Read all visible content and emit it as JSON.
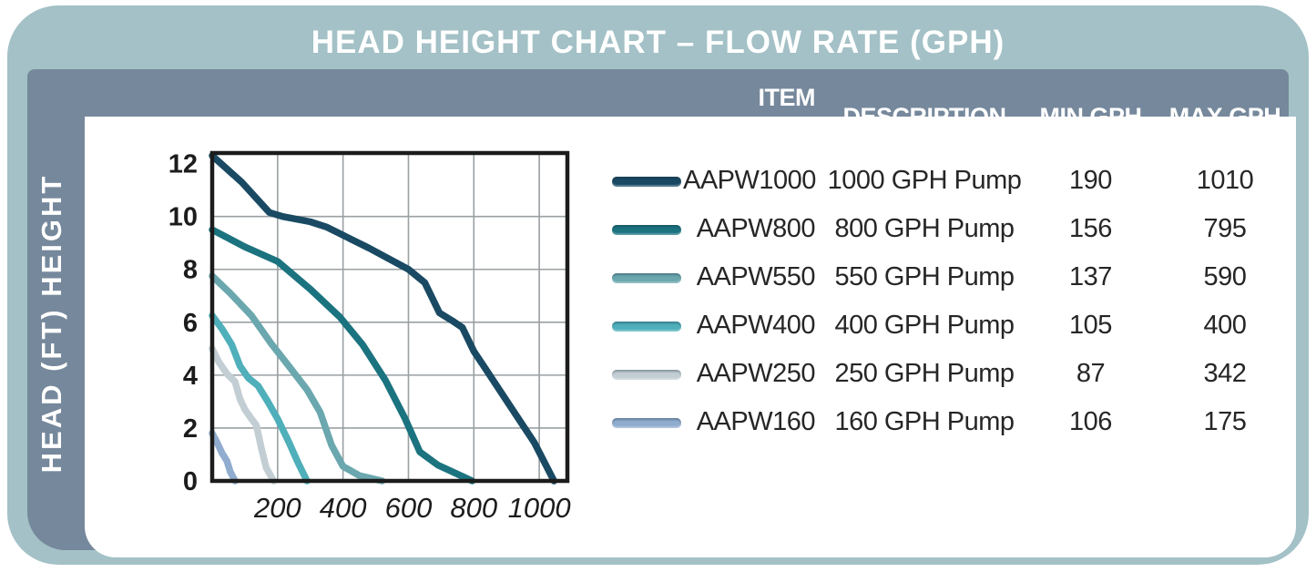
{
  "title": "HEAD HEIGHT CHART – FLOW RATE (GPH)",
  "y_axis_label": "HEAD (FT) HEIGHT",
  "colors": {
    "frame": "#a3c1c6",
    "panel": "#76889c",
    "card": "#ffffff",
    "grid": "#9aa0a3",
    "axis_border": "#1c1c1c",
    "table_text": "#262626",
    "header_text": "#ffffff"
  },
  "table": {
    "headers": [
      "ITEM CODE",
      "DESCRIPTION",
      "MIN GPH",
      "MAX GPH"
    ],
    "rows": [
      {
        "code": "AAPW1000",
        "description": "1000 GPH Pump",
        "min_gph": "190",
        "max_gph": "1010",
        "color": "#1a4a63"
      },
      {
        "code": "AAPW800",
        "description": "800 GPH Pump",
        "min_gph": "156",
        "max_gph": "795",
        "color": "#1b737f"
      },
      {
        "code": "AAPW550",
        "description": "550 GPH Pump",
        "min_gph": "137",
        "max_gph": "590",
        "color": "#6ba7ae"
      },
      {
        "code": "AAPW400",
        "description": "400 GPH Pump",
        "min_gph": "105",
        "max_gph": "400",
        "color": "#4fafba"
      },
      {
        "code": "AAPW250",
        "description": "250 GPH Pump",
        "min_gph": "87",
        "max_gph": "342",
        "color": "#c2ced3"
      },
      {
        "code": "AAPW160",
        "description": "160 GPH Pump",
        "min_gph": "106",
        "max_gph": "175",
        "color": "#90accf"
      }
    ]
  },
  "chart_data": {
    "type": "line",
    "title": "HEAD HEIGHT CHART – FLOW RATE (GPH)",
    "xlabel": "FLOW RATE (GPH)",
    "ylabel": "HEAD (FT) HEIGHT",
    "xlim": [
      0,
      1086
    ],
    "ylim": [
      0,
      12.4
    ],
    "x_ticks": [
      200,
      400,
      600,
      800,
      1000
    ],
    "y_ticks": [
      0,
      2,
      4,
      6,
      8,
      10,
      12
    ],
    "grid": true,
    "legend_position": "right-table",
    "series": [
      {
        "name": "AAPW1000",
        "color": "#1a4a63",
        "points": [
          [
            0,
            12.3
          ],
          [
            90,
            11.3
          ],
          [
            175,
            10.15
          ],
          [
            215,
            10.0
          ],
          [
            300,
            9.8
          ],
          [
            350,
            9.6
          ],
          [
            480,
            8.8
          ],
          [
            600,
            8.0
          ],
          [
            650,
            7.5
          ],
          [
            695,
            6.35
          ],
          [
            735,
            6.05
          ],
          [
            765,
            5.8
          ],
          [
            800,
            4.9
          ],
          [
            835,
            4.25
          ],
          [
            910,
            2.85
          ],
          [
            985,
            1.45
          ],
          [
            1045,
            0
          ]
        ]
      },
      {
        "name": "AAPW800",
        "color": "#1b737f",
        "points": [
          [
            0,
            9.5
          ],
          [
            100,
            8.85
          ],
          [
            200,
            8.3
          ],
          [
            300,
            7.25
          ],
          [
            390,
            6.2
          ],
          [
            460,
            5.15
          ],
          [
            530,
            3.8
          ],
          [
            590,
            2.35
          ],
          [
            635,
            1.1
          ],
          [
            690,
            0.6
          ],
          [
            795,
            0
          ]
        ]
      },
      {
        "name": "AAPW550",
        "color": "#6ba7ae",
        "points": [
          [
            0,
            7.75
          ],
          [
            55,
            7.1
          ],
          [
            120,
            6.25
          ],
          [
            180,
            5.2
          ],
          [
            240,
            4.25
          ],
          [
            290,
            3.45
          ],
          [
            330,
            2.6
          ],
          [
            365,
            1.35
          ],
          [
            400,
            0.55
          ],
          [
            450,
            0.2
          ],
          [
            520,
            0
          ]
        ]
      },
      {
        "name": "AAPW400",
        "color": "#4fafba",
        "points": [
          [
            0,
            6.25
          ],
          [
            30,
            5.75
          ],
          [
            60,
            5.15
          ],
          [
            85,
            4.35
          ],
          [
            110,
            3.9
          ],
          [
            140,
            3.6
          ],
          [
            170,
            3.0
          ],
          [
            200,
            2.35
          ],
          [
            235,
            1.45
          ],
          [
            262,
            0.7
          ],
          [
            290,
            0
          ]
        ]
      },
      {
        "name": "AAPW250",
        "color": "#c2ced3",
        "points": [
          [
            0,
            5.0
          ],
          [
            20,
            4.5
          ],
          [
            45,
            4.05
          ],
          [
            70,
            3.75
          ],
          [
            85,
            3.1
          ],
          [
            100,
            2.7
          ],
          [
            120,
            2.35
          ],
          [
            135,
            2.1
          ],
          [
            150,
            1.25
          ],
          [
            165,
            0.5
          ],
          [
            188,
            0
          ]
        ]
      },
      {
        "name": "AAPW160",
        "color": "#90accf",
        "points": [
          [
            0,
            1.8
          ],
          [
            15,
            1.45
          ],
          [
            30,
            1.05
          ],
          [
            45,
            0.75
          ],
          [
            55,
            0.35
          ],
          [
            70,
            0
          ]
        ]
      }
    ]
  }
}
